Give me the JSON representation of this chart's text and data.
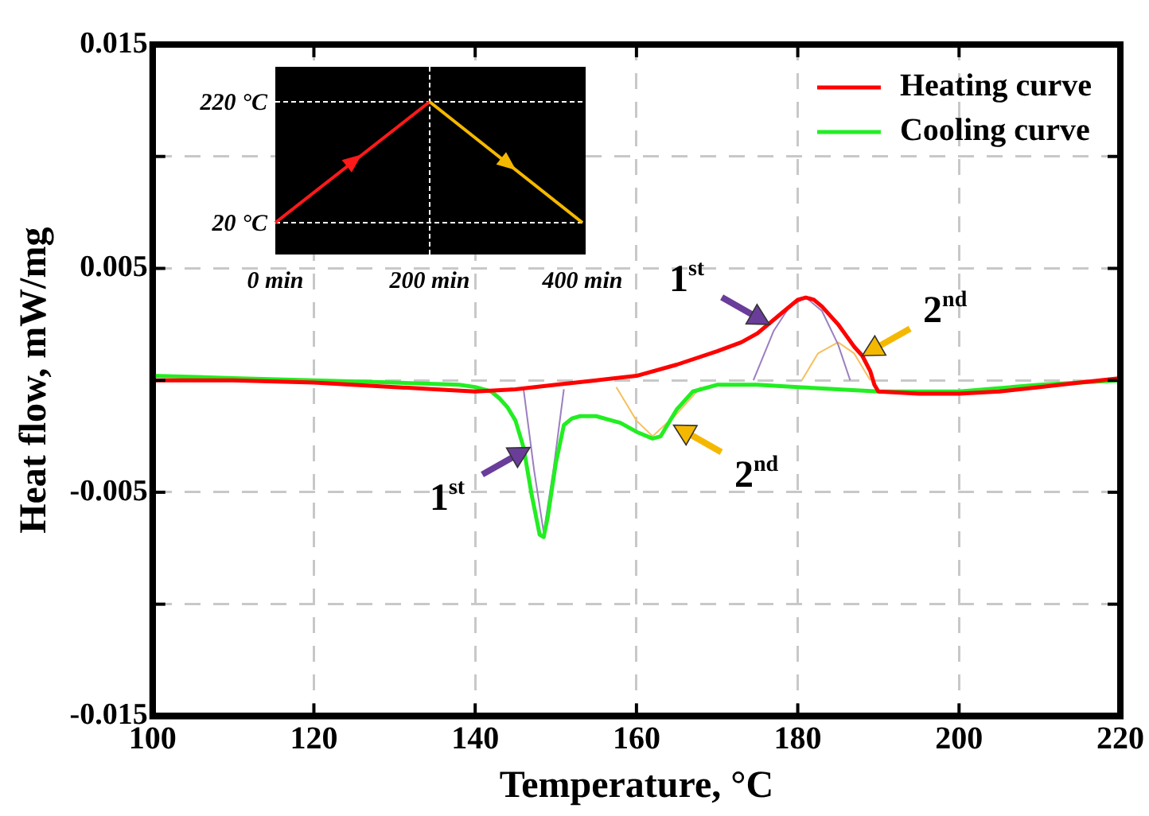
{
  "chart_data": {
    "type": "line",
    "xlabel": "Temperature, °C",
    "ylabel": "Heat flow, mW/mg",
    "xlim": [
      100,
      220
    ],
    "xticks": [
      100,
      120,
      140,
      160,
      180,
      200,
      220
    ],
    "ylim": [
      -0.015,
      0.015
    ],
    "yticks": [
      {
        "value": -0.015,
        "label": "-0.015"
      },
      {
        "value": -0.01,
        "label": null
      },
      {
        "value": -0.005,
        "label": "-0.005"
      },
      {
        "value": 0,
        "label": null
      },
      {
        "value": 0.005,
        "label": "0.005"
      },
      {
        "value": 0.01,
        "label": null
      },
      {
        "value": 0.015,
        "label": "0.015"
      }
    ],
    "grid": true,
    "legend": "top right",
    "marker": "none",
    "line_style": "solid",
    "series": [
      {
        "name": "Heating curve",
        "color": "#ff0000",
        "x": [
          100,
          110,
          120,
          130,
          135,
          140,
          145,
          150,
          155,
          160,
          165,
          170,
          173,
          175,
          178,
          180,
          181,
          182,
          183,
          185,
          186,
          187,
          188,
          189,
          189.5,
          190,
          195,
          200,
          205,
          210,
          215,
          220
        ],
        "values": [
          0,
          0,
          -0.0001,
          -0.0003,
          -0.0004,
          -0.0005,
          -0.0004,
          -0.0002,
          0,
          0.0002,
          0.0007,
          0.0013,
          0.0017,
          0.0021,
          0.003,
          0.0036,
          0.0037,
          0.0036,
          0.0033,
          0.0025,
          0.002,
          0.0015,
          0.0011,
          0.0004,
          -0.0002,
          -0.0005,
          -0.0006,
          -0.0006,
          -0.0005,
          -0.0003,
          -0.0001,
          0.0001
        ]
      },
      {
        "name": "Cooling curve",
        "color": "#22ee22",
        "x": [
          100,
          110,
          120,
          130,
          138,
          140,
          142,
          143,
          144,
          145,
          146,
          147,
          148,
          148.5,
          149,
          150,
          151,
          152,
          153,
          155,
          158,
          160,
          162,
          163,
          165,
          167,
          170,
          175,
          180,
          190,
          200,
          210,
          220
        ],
        "values": [
          0.0002,
          0.0001,
          0,
          -0.0001,
          -0.0002,
          -0.0003,
          -0.0005,
          -0.0008,
          -0.0012,
          -0.0018,
          -0.003,
          -0.0051,
          -0.0069,
          -0.007,
          -0.0061,
          -0.0037,
          -0.002,
          -0.0017,
          -0.0016,
          -0.0016,
          -0.0019,
          -0.0023,
          -0.0026,
          -0.0025,
          -0.0013,
          -0.0005,
          -0.0002,
          -0.0002,
          -0.0003,
          -0.0005,
          -0.0005,
          -0.0002,
          0
        ]
      },
      {
        "color": "#9b7fc0",
        "x": [
          174.5,
          177,
          179,
          181,
          183,
          185,
          186.5
        ],
        "values": [
          0,
          0.0022,
          0.0033,
          0.0037,
          0.0031,
          0.0016,
          0
        ]
      },
      {
        "color": "#f5c060",
        "x": [
          180.5,
          182.5,
          185,
          187,
          189
        ],
        "values": [
          0,
          0.0012,
          0.0017,
          0.0012,
          0
        ]
      },
      {
        "color": "#9b7fc0",
        "x": [
          146,
          147.3,
          148.5,
          149.7,
          151
        ],
        "values": [
          -0.0004,
          -0.004,
          -0.0068,
          -0.004,
          -0.0004
        ]
      },
      {
        "color": "#f5c060",
        "x": [
          157.5,
          160,
          162,
          165,
          168
        ],
        "values": [
          -0.0003,
          -0.0018,
          -0.0025,
          -0.0015,
          -0.0003
        ]
      }
    ],
    "annotations": [
      "220 °C",
      "20 °C",
      "0 min",
      "200 min",
      "400 min",
      {
        "text": "1$^{st}$",
        "x": 146.8,
        "y": -0.003
      },
      {
        "text": "2$^{nd}$",
        "x": 164.6,
        "y": -0.002
      },
      {
        "text": "1$^{st}$",
        "x": 176.5,
        "y": 0.0025
      },
      {
        "text": "2$^{nd}$",
        "x": 188,
        "y": 0.0011
      }
    ]
  }
}
